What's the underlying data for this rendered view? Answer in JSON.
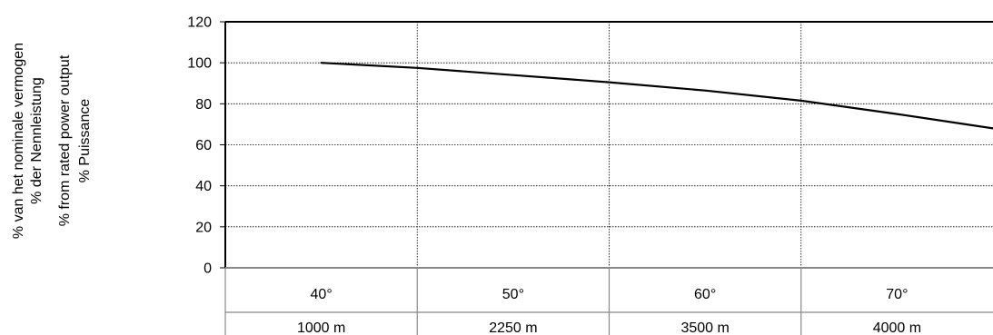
{
  "chart_data": {
    "type": "line",
    "ylabel_lines": [
      "% van het nominale vermogen",
      "% der Nennleistung",
      "% from rated power output",
      "% Puissance"
    ],
    "yticks": [
      "0",
      "20",
      "40",
      "60",
      "80",
      "100",
      "120"
    ],
    "ylim": [
      0,
      120
    ],
    "grid": true,
    "categories": [
      "40°",
      "50°",
      "60°",
      "70°"
    ],
    "categories_secondary": [
      "1000 m",
      "2250 m",
      "3500 m",
      "4000 m"
    ],
    "series": [
      {
        "points": [
          {
            "x": 0,
            "y": 100
          },
          {
            "x": 0.5,
            "y": 97.5
          },
          {
            "x": 1,
            "y": 94
          },
          {
            "x": 1.5,
            "y": 90.5
          },
          {
            "x": 2,
            "y": 86.5
          },
          {
            "x": 2.5,
            "y": 81.5
          },
          {
            "x": 3,
            "y": 75
          },
          {
            "x": 3.5,
            "y": 68
          }
        ]
      }
    ]
  }
}
